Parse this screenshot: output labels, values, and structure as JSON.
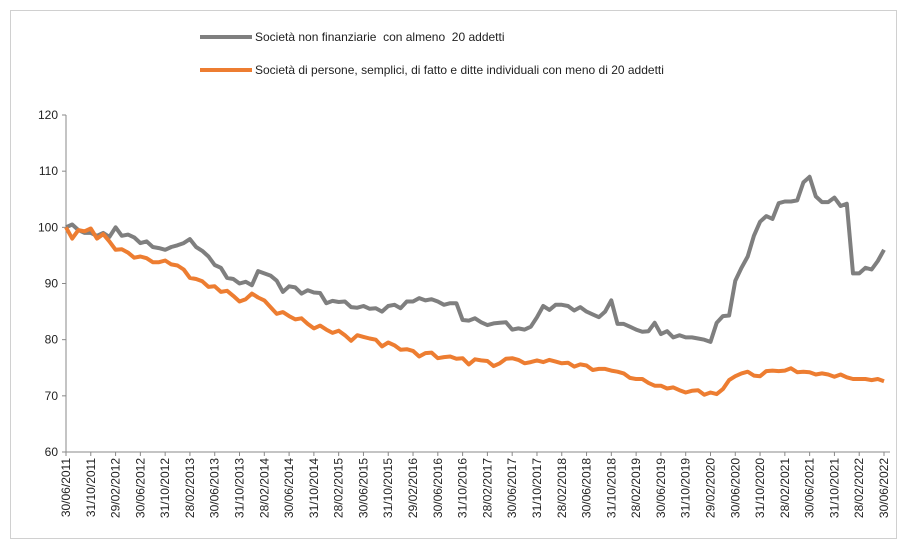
{
  "chart_data": {
    "type": "line",
    "categories": [
      "30/06/2011",
      null,
      null,
      null,
      "31/10/2011",
      null,
      null,
      null,
      "29/02/2012",
      null,
      null,
      null,
      "30/06/2012",
      null,
      null,
      null,
      "31/10/2012",
      null,
      null,
      null,
      "28/02/2013",
      null,
      null,
      null,
      "30/06/2013",
      null,
      null,
      null,
      "31/10/2013",
      null,
      null,
      null,
      "28/02/2014",
      null,
      null,
      null,
      "30/06/2014",
      null,
      null,
      null,
      "31/10/2014",
      null,
      null,
      null,
      "28/02/2015",
      null,
      null,
      null,
      "30/06/2015",
      null,
      null,
      null,
      "31/10/2015",
      null,
      null,
      null,
      "29/02/2016",
      null,
      null,
      null,
      "30/06/2016",
      null,
      null,
      null,
      "31/10/2016",
      null,
      null,
      null,
      "28/02/2017",
      null,
      null,
      null,
      "30/06/2017",
      null,
      null,
      null,
      "31/10/2017",
      null,
      null,
      null,
      "28/02/2018",
      null,
      null,
      null,
      "30/06/2018",
      null,
      null,
      null,
      "31/10/2018",
      null,
      null,
      null,
      "28/02/2019",
      null,
      null,
      null,
      "30/06/2019",
      null,
      null,
      null,
      "31/10/2019",
      null,
      null,
      null,
      "29/02/2020",
      null,
      null,
      null,
      "30/06/2020",
      null,
      null,
      null,
      "31/10/2020",
      null,
      null,
      null,
      "28/02/2021",
      null,
      null,
      null,
      "30/06/2021",
      null,
      null,
      null,
      "31/10/2021",
      null,
      null,
      null,
      "28/02/2022",
      null,
      null,
      null,
      "30/06/2022"
    ],
    "series": [
      {
        "name": "Società non finanziarie  con almeno  20 addetti",
        "color": "#7f7f7f",
        "values": [
          100,
          100.5,
          99.5,
          99,
          99,
          98.5,
          99,
          98.3,
          100,
          98.5,
          98.7,
          98.2,
          97.2,
          97.5,
          96.5,
          96.3,
          96,
          96.5,
          96.8,
          97.2,
          97.9,
          96.5,
          95.8,
          94.8,
          93.3,
          92.8,
          91,
          90.8,
          90,
          90.3,
          89.7,
          92.2,
          91.8,
          91.4,
          90.5,
          88.5,
          89.5,
          89.3,
          88.2,
          88.8,
          88.4,
          88.3,
          86.5,
          86.9,
          86.7,
          86.8,
          85.8,
          85.7,
          86,
          85.5,
          85.6,
          85,
          86,
          86.2,
          85.6,
          86.8,
          86.8,
          87.4,
          87,
          87.2,
          86.8,
          86.2,
          86.5,
          86.5,
          83.5,
          83.4,
          83.8,
          83.1,
          82.6,
          82.9,
          83,
          83.1,
          81.8,
          82,
          81.8,
          82.3,
          84,
          86,
          85.3,
          86.2,
          86.2,
          86,
          85.2,
          85.8,
          85,
          84.5,
          84,
          85,
          87,
          82.8,
          82.8,
          82.3,
          81.8,
          81.4,
          81.5,
          83,
          81,
          81.5,
          80.4,
          80.8,
          80.4,
          80.4,
          80.2,
          80,
          79.6,
          83,
          84.2,
          84.3,
          90.5,
          92.8,
          94.8,
          98.5,
          101,
          102,
          101.5,
          104.3,
          104.6,
          104.6,
          104.8,
          108,
          109,
          105.5,
          104.5,
          104.5,
          105.3,
          103.8,
          104.2,
          91.8,
          91.8,
          92.8,
          92.5,
          94,
          96
        ]
      },
      {
        "name": "Società di persone, semplici, di fatto e ditte individuali con meno di 20 addetti",
        "color": "#ed7d31",
        "values": [
          100,
          98,
          99.5,
          99.3,
          99.8,
          98,
          98.8,
          97.5,
          96,
          96.1,
          95.5,
          94.6,
          94.8,
          94.5,
          93.8,
          93.8,
          94.1,
          93.4,
          93.2,
          92.5,
          91,
          90.8,
          90.4,
          89.4,
          89.5,
          88.5,
          88.7,
          87.8,
          86.8,
          87.2,
          88.2,
          87.5,
          87,
          85.8,
          84.6,
          84.9,
          84.2,
          83.6,
          83.8,
          82.8,
          82,
          82.5,
          81.8,
          81.2,
          81.6,
          80.8,
          79.8,
          80.8,
          80.5,
          80.2,
          80,
          78.8,
          79.5,
          79,
          78.2,
          78.3,
          78,
          77,
          77.6,
          77.7,
          76.7,
          76.9,
          77,
          76.6,
          76.7,
          75.6,
          76.5,
          76.3,
          76.2,
          75.3,
          75.8,
          76.6,
          76.7,
          76.4,
          75.8,
          76,
          76.3,
          76,
          76.4,
          76.1,
          75.8,
          75.9,
          75.2,
          75.6,
          75.4,
          74.6,
          74.8,
          74.8,
          74.5,
          74.3,
          74,
          73.2,
          73,
          73,
          72.3,
          71.8,
          71.8,
          71.3,
          71.5,
          71,
          70.6,
          70.9,
          71,
          70.2,
          70.6,
          70.3,
          71.2,
          72.8,
          73.5,
          74,
          74.3,
          73.6,
          73.5,
          74.4,
          74.5,
          74.4,
          74.5,
          74.9,
          74.2,
          74.3,
          74.2,
          73.8,
          74,
          73.8,
          73.4,
          73.8,
          73.3,
          73,
          73,
          73,
          72.8,
          73,
          72.6
        ]
      }
    ],
    "ylim": [
      60,
      120
    ],
    "yticks": [
      60,
      70,
      80,
      90,
      100,
      110,
      120
    ],
    "grid": false
  }
}
